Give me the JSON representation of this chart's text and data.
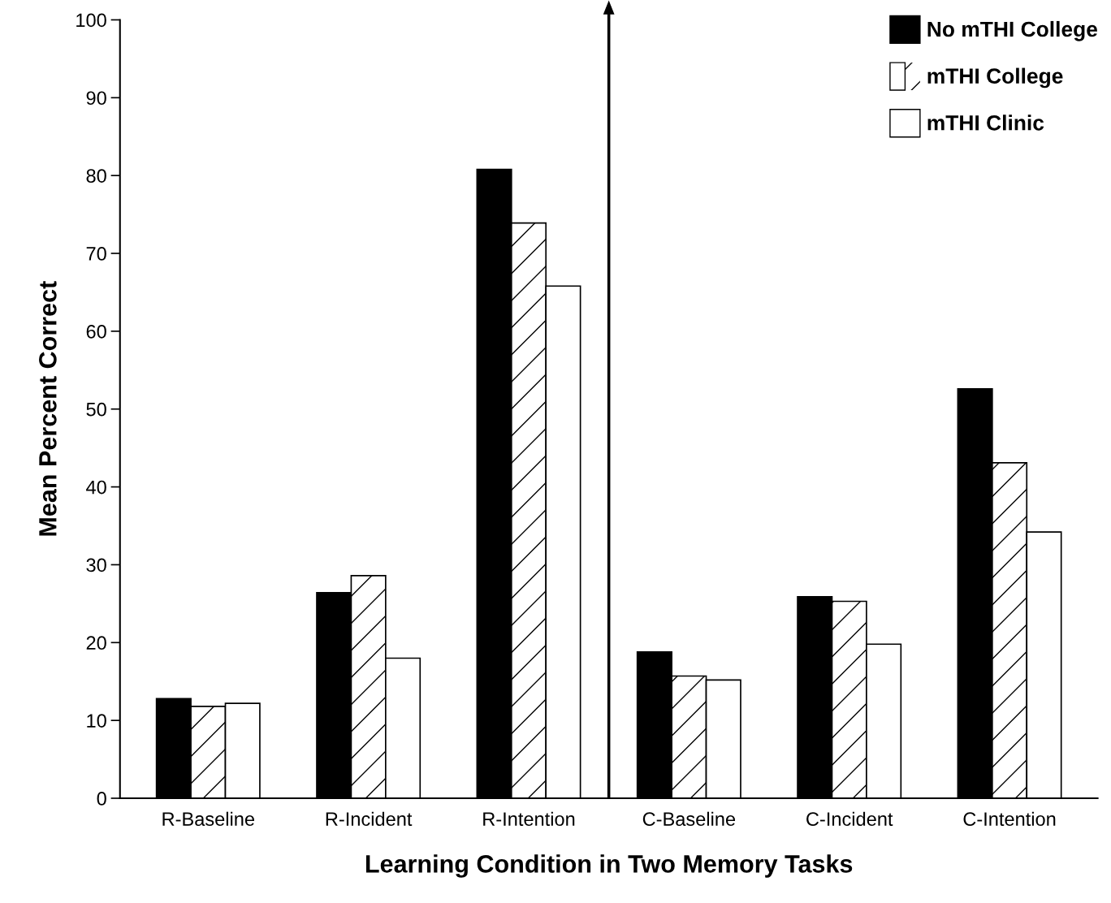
{
  "chart_data": {
    "type": "bar",
    "xlabel": "Learning Condition in Two Memory Tasks",
    "ylabel": "Mean Percent Correct",
    "categories": [
      "R-Baseline",
      "R-Incident",
      "R-Intention",
      "C-Baseline",
      "C-Incident",
      "C-Intention"
    ],
    "series": [
      {
        "name": "No mTHI College",
        "color": "#000000",
        "values": [
          12.8,
          26.4,
          80.8,
          18.8,
          25.9,
          52.6
        ]
      },
      {
        "name": "mTHI College",
        "color": "#ffffff",
        "values": [
          11.8,
          28.6,
          73.9,
          15.7,
          25.3,
          43.1
        ]
      },
      {
        "name": "mTHI Clinic",
        "color": "#ffffff",
        "values": [
          12.2,
          18.0,
          65.8,
          15.2,
          19.8,
          34.2
        ]
      }
    ],
    "ylim": [
      0,
      100
    ],
    "yticks": [
      0,
      10,
      20,
      30,
      40,
      50,
      60,
      70,
      80,
      90,
      100
    ],
    "grid": false,
    "legend": "top right"
  }
}
